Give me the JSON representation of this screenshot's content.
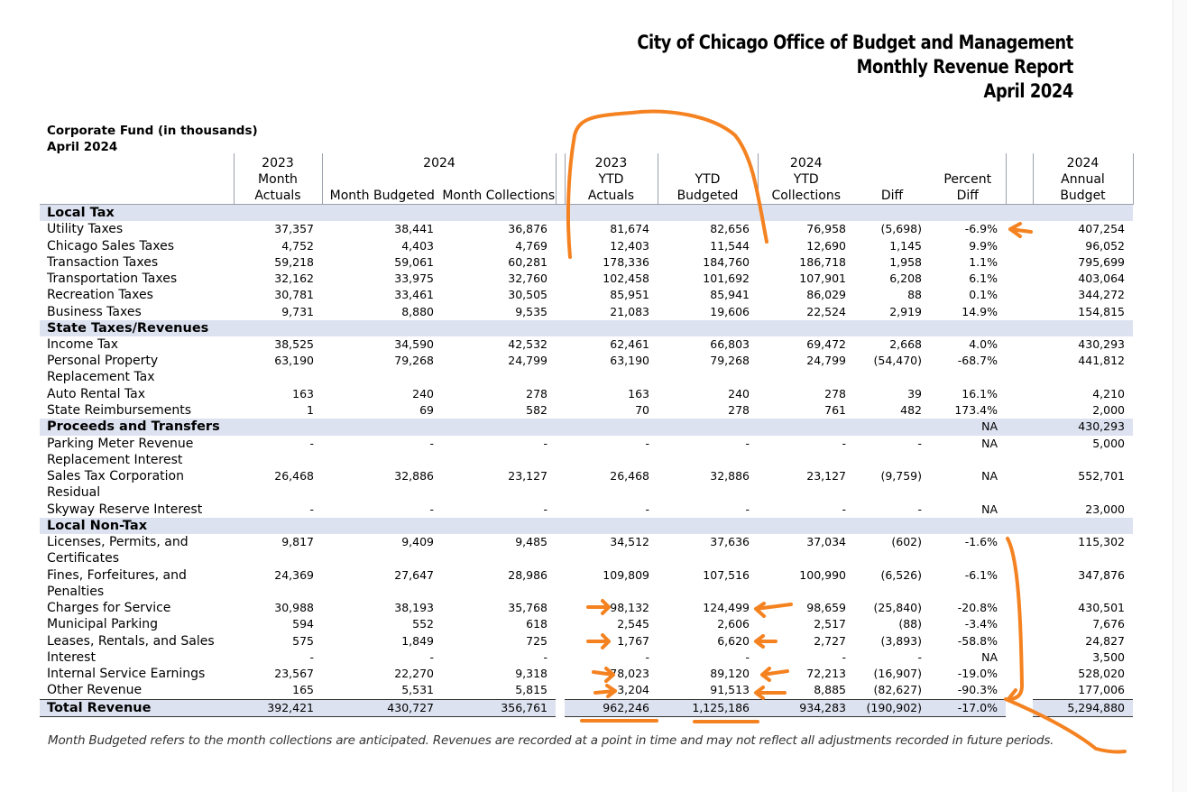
{
  "header": {
    "line1": "City of Chicago Office of Budget and Management",
    "line2": "Monthly Revenue Report",
    "line3": "April 2024"
  },
  "fund": {
    "line1": "Corporate Fund (in thousands)",
    "line2": "April 2024"
  },
  "columns": [
    "2023\nMonth\nActuals",
    "2024",
    "Month Budgeted",
    "Month Collections",
    "2023\nYTD\nActuals",
    "YTD\nBudgeted",
    "2024\nYTD\nCollections",
    "Diff",
    "Percent\nDiff",
    "2024\nAnnual\nBudget"
  ],
  "headers": {
    "c1": [
      "2023",
      "Month",
      "Actuals"
    ],
    "c2top": "2024",
    "c2": "Month Budgeted",
    "c3": "Month Collections",
    "c4": [
      "2023",
      "YTD",
      "Actuals"
    ],
    "c5": [
      "YTD",
      "Budgeted"
    ],
    "c6": [
      "2024",
      "YTD",
      "Collections"
    ],
    "c7": "Diff",
    "c8": [
      "Percent",
      "Diff"
    ],
    "c9": [
      "2024",
      "Annual",
      "Budget"
    ]
  },
  "rows": [
    {
      "type": "section",
      "label": "Local Tax",
      "values": [
        "",
        "",
        "",
        "",
        "",
        "",
        "",
        "",
        ""
      ]
    },
    {
      "type": "data",
      "label": "Utility Taxes",
      "values": [
        "37,357",
        "38,441",
        "36,876",
        "81,674",
        "82,656",
        "76,958",
        "(5,698)",
        "-6.9%",
        "407,254"
      ]
    },
    {
      "type": "data",
      "label": "Chicago Sales Taxes",
      "values": [
        "4,752",
        "4,403",
        "4,769",
        "12,403",
        "11,544",
        "12,690",
        "1,145",
        "9.9%",
        "96,052"
      ]
    },
    {
      "type": "data",
      "label": "Transaction Taxes",
      "values": [
        "59,218",
        "59,061",
        "60,281",
        "178,336",
        "184,760",
        "186,718",
        "1,958",
        "1.1%",
        "795,699"
      ]
    },
    {
      "type": "data",
      "label": "Transportation Taxes",
      "values": [
        "32,162",
        "33,975",
        "32,760",
        "102,458",
        "101,692",
        "107,901",
        "6,208",
        "6.1%",
        "403,064"
      ]
    },
    {
      "type": "data",
      "label": "Recreation Taxes",
      "values": [
        "30,781",
        "33,461",
        "30,505",
        "85,951",
        "85,941",
        "86,029",
        "88",
        "0.1%",
        "344,272"
      ]
    },
    {
      "type": "data",
      "label": "Business Taxes",
      "values": [
        "9,731",
        "8,880",
        "9,535",
        "21,083",
        "19,606",
        "22,524",
        "2,919",
        "14.9%",
        "154,815"
      ]
    },
    {
      "type": "section",
      "label": "State Taxes/Revenues",
      "values": [
        "",
        "",
        "",
        "",
        "",
        "",
        "",
        "",
        ""
      ]
    },
    {
      "type": "data",
      "label": "Income Tax",
      "values": [
        "38,525",
        "34,590",
        "42,532",
        "62,461",
        "66,803",
        "69,472",
        "2,668",
        "4.0%",
        "430,293"
      ]
    },
    {
      "type": "dbl",
      "label": "Personal Property Replacement Tax",
      "values": [
        "63,190",
        "79,268",
        "24,799",
        "63,190",
        "79,268",
        "24,799",
        "(54,470)",
        "-68.7%",
        "441,812"
      ]
    },
    {
      "type": "data",
      "label": "Auto Rental Tax",
      "values": [
        "163",
        "240",
        "278",
        "163",
        "240",
        "278",
        "39",
        "16.1%",
        "4,210"
      ]
    },
    {
      "type": "data",
      "label": "State Reimbursements",
      "values": [
        "1",
        "69",
        "582",
        "70",
        "278",
        "761",
        "482",
        "173.4%",
        "2,000"
      ]
    },
    {
      "type": "section",
      "label": "Proceeds and Transfers",
      "values": [
        "",
        "",
        "",
        "",
        "",
        "",
        "",
        "NA",
        "430,293"
      ]
    },
    {
      "type": "dbl",
      "label": "Parking Meter Revenue Replacement Interest",
      "values": [
        "-",
        "-",
        "-",
        "-",
        "-",
        "-",
        "-",
        "NA",
        "5,000"
      ]
    },
    {
      "type": "dbl",
      "label": "Sales Tax Corporation Residual",
      "values": [
        "26,468",
        "32,886",
        "23,127",
        "26,468",
        "32,886",
        "23,127",
        "(9,759)",
        "NA",
        "552,701"
      ]
    },
    {
      "type": "data",
      "label": "Skyway Reserve Interest",
      "values": [
        "-",
        "-",
        "-",
        "-",
        "-",
        "-",
        "-",
        "NA",
        "23,000"
      ]
    },
    {
      "type": "section",
      "label": "Local Non-Tax",
      "values": [
        "",
        "",
        "",
        "",
        "",
        "",
        "",
        "",
        ""
      ]
    },
    {
      "type": "dbl",
      "label": "Licenses, Permits, and Certificates",
      "values": [
        "9,817",
        "9,409",
        "9,485",
        "34,512",
        "37,636",
        "37,034",
        "(602)",
        "-1.6%",
        "115,302"
      ]
    },
    {
      "type": "dbl",
      "label": "Fines, Forfeitures, and Penalties",
      "values": [
        "24,369",
        "27,647",
        "28,986",
        "109,809",
        "107,516",
        "100,990",
        "(6,526)",
        "-6.1%",
        "347,876"
      ]
    },
    {
      "type": "data",
      "label": "Charges for Service",
      "values": [
        "30,988",
        "38,193",
        "35,768",
        "98,132",
        "124,499",
        "98,659",
        "(25,840)",
        "-20.8%",
        "430,501"
      ]
    },
    {
      "type": "data",
      "label": "Municipal Parking",
      "values": [
        "594",
        "552",
        "618",
        "2,545",
        "2,606",
        "2,517",
        "(88)",
        "-3.4%",
        "7,676"
      ]
    },
    {
      "type": "data",
      "label": "Leases, Rentals, and Sales",
      "values": [
        "575",
        "1,849",
        "725",
        "1,767",
        "6,620",
        "2,727",
        "(3,893)",
        "-58.8%",
        "24,827"
      ]
    },
    {
      "type": "data",
      "label": "Interest",
      "values": [
        "-",
        "-",
        "-",
        "-",
        "-",
        "-",
        "-",
        "NA",
        "3,500"
      ]
    },
    {
      "type": "data",
      "label": "Internal Service Earnings",
      "values": [
        "23,567",
        "22,270",
        "9,318",
        "78,023",
        "89,120",
        "72,213",
        "(16,907)",
        "-19.0%",
        "528,020"
      ]
    },
    {
      "type": "data",
      "label": "Other Revenue",
      "values": [
        "165",
        "5,531",
        "5,815",
        "3,204",
        "91,513",
        "8,885",
        "(82,627)",
        "-90.3%",
        "177,006"
      ]
    },
    {
      "type": "total",
      "label": "Total Revenue",
      "values": [
        "392,421",
        "430,727",
        "356,761",
        "962,246",
        "1,125,186",
        "934,283",
        "(190,902)",
        "-17.0%",
        "5,294,880"
      ]
    }
  ],
  "footnote": "Month Budgeted refers to the month collections are anticipated. Revenues are recorded at a point in time and may not reflect all adjustments recorded in future periods.",
  "colors": {
    "section_bg": "#dde2f0",
    "annotation": "#f58220"
  }
}
